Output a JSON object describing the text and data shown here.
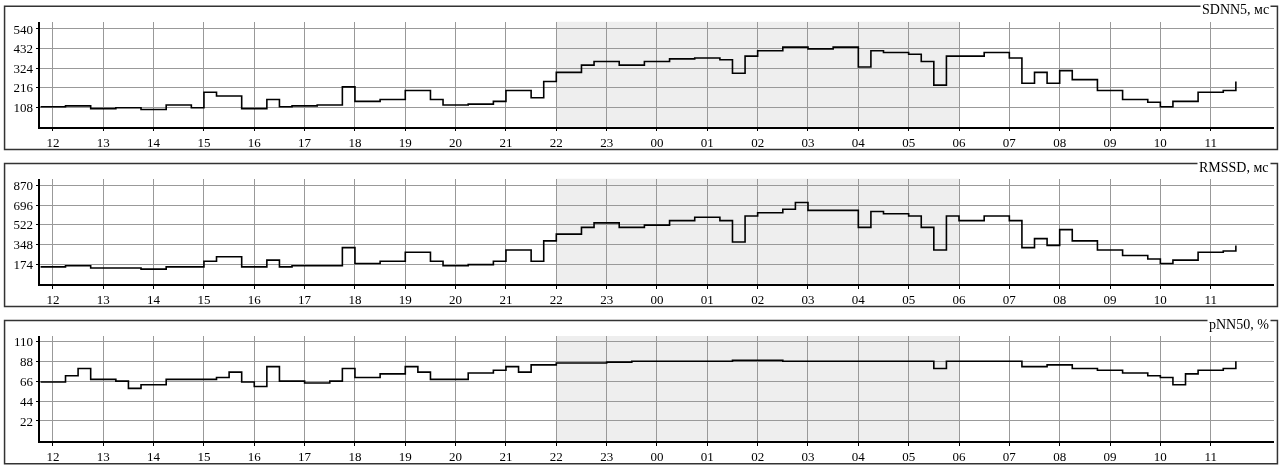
{
  "chart_data": [
    {
      "type": "step",
      "title": "SDNN5, мс",
      "categories": [
        null,
        "12",
        null,
        null,
        null,
        "13",
        null,
        null,
        null,
        "14",
        null,
        null,
        null,
        "15",
        null,
        null,
        null,
        "16",
        null,
        null,
        null,
        "17",
        null,
        null,
        null,
        "18",
        null,
        null,
        null,
        "19",
        null,
        null,
        null,
        "20",
        null,
        null,
        null,
        "21",
        null,
        null,
        null,
        "22",
        null,
        null,
        null,
        "23",
        null,
        null,
        null,
        "00",
        null,
        null,
        null,
        "01",
        null,
        null,
        null,
        "02",
        null,
        null,
        null,
        "03",
        null,
        null,
        null,
        "04",
        null,
        null,
        null,
        "05",
        null,
        null,
        null,
        "06",
        null,
        null,
        null,
        "07",
        null,
        null,
        null,
        "08",
        null,
        null,
        null,
        "09",
        null,
        null,
        null,
        "10",
        null,
        null,
        null,
        "11",
        null,
        null,
        null,
        null,
        null
      ],
      "ylim": [
        0,
        580
      ],
      "yticks": [
        108,
        216,
        324,
        432,
        540
      ],
      "grid": true,
      "bands": [
        {
          "axis": "x",
          "from": "22",
          "to": "06",
          "color": "#eeeeee"
        }
      ],
      "series": [
        {
          "color": "#000000",
          "values": [
            110,
            110,
            115,
            115,
            100,
            100,
            105,
            105,
            95,
            95,
            120,
            120,
            105,
            190,
            170,
            170,
            100,
            100,
            150,
            110,
            115,
            115,
            120,
            120,
            220,
            140,
            140,
            150,
            150,
            200,
            200,
            150,
            120,
            120,
            125,
            125,
            140,
            200,
            200,
            160,
            250,
            300,
            300,
            340,
            360,
            360,
            340,
            340,
            360,
            360,
            375,
            375,
            380,
            380,
            370,
            295,
            390,
            420,
            420,
            440,
            440,
            430,
            430,
            440,
            440,
            330,
            420,
            410,
            410,
            400,
            360,
            230,
            390,
            390,
            390,
            410,
            410,
            380,
            240,
            300,
            240,
            310,
            260,
            260,
            200,
            200,
            150,
            150,
            135,
            110,
            140,
            140,
            190,
            190,
            200,
            250,
            null,
            null,
            null
          ]
        }
      ]
    },
    {
      "type": "step",
      "title": "RMSSD, мс",
      "categories": [
        null,
        "12",
        null,
        null,
        null,
        "13",
        null,
        null,
        null,
        "14",
        null,
        null,
        null,
        "15",
        null,
        null,
        null,
        "16",
        null,
        null,
        null,
        "17",
        null,
        null,
        null,
        "18",
        null,
        null,
        null,
        "19",
        null,
        null,
        null,
        "20",
        null,
        null,
        null,
        "21",
        null,
        null,
        null,
        "22",
        null,
        null,
        null,
        "23",
        null,
        null,
        null,
        "00",
        null,
        null,
        null,
        "01",
        null,
        null,
        null,
        "02",
        null,
        null,
        null,
        "03",
        null,
        null,
        null,
        "04",
        null,
        null,
        null,
        "05",
        null,
        null,
        null,
        "06",
        null,
        null,
        null,
        "07",
        null,
        null,
        null,
        "08",
        null,
        null,
        null,
        "09",
        null,
        null,
        null,
        "10",
        null,
        null,
        null,
        "11",
        null,
        null,
        null,
        null,
        null
      ],
      "ylim": [
        0,
        930
      ],
      "yticks": [
        174,
        348,
        522,
        696,
        870
      ],
      "grid": true,
      "bands": [
        {
          "axis": "x",
          "from": "22",
          "to": "06",
          "color": "#eeeeee"
        }
      ],
      "series": [
        {
          "color": "#000000",
          "values": [
            150,
            150,
            160,
            160,
            140,
            140,
            140,
            140,
            130,
            130,
            150,
            150,
            150,
            200,
            240,
            240,
            150,
            150,
            210,
            150,
            160,
            160,
            160,
            160,
            320,
            180,
            180,
            200,
            200,
            280,
            280,
            200,
            160,
            160,
            170,
            170,
            200,
            300,
            300,
            200,
            380,
            440,
            440,
            500,
            540,
            540,
            500,
            500,
            520,
            520,
            560,
            560,
            590,
            590,
            560,
            370,
            600,
            630,
            630,
            660,
            720,
            650,
            650,
            650,
            650,
            500,
            640,
            620,
            620,
            600,
            500,
            300,
            600,
            560,
            560,
            600,
            600,
            560,
            320,
            400,
            340,
            480,
            380,
            380,
            300,
            300,
            250,
            250,
            220,
            180,
            210,
            210,
            280,
            280,
            290,
            340,
            null,
            null,
            null
          ]
        }
      ]
    },
    {
      "type": "step",
      "title": "pNN50, %",
      "categories": [
        null,
        "12",
        null,
        null,
        null,
        "13",
        null,
        null,
        null,
        "14",
        null,
        null,
        null,
        "15",
        null,
        null,
        null,
        "16",
        null,
        null,
        null,
        "17",
        null,
        null,
        null,
        "18",
        null,
        null,
        null,
        "19",
        null,
        null,
        null,
        "20",
        null,
        null,
        null,
        "21",
        null,
        null,
        null,
        "22",
        null,
        null,
        null,
        "23",
        null,
        null,
        null,
        "00",
        null,
        null,
        null,
        "01",
        null,
        null,
        null,
        "02",
        null,
        null,
        null,
        "03",
        null,
        null,
        null,
        "04",
        null,
        null,
        null,
        "05",
        null,
        null,
        null,
        "06",
        null,
        null,
        null,
        "07",
        null,
        null,
        null,
        "08",
        null,
        null,
        null,
        "09",
        null,
        null,
        null,
        "10",
        null,
        null,
        null,
        "11",
        null,
        null,
        null,
        null,
        null
      ],
      "ylim": [
        0,
        116
      ],
      "yticks": [
        22,
        44,
        66,
        88,
        110
      ],
      "grid": true,
      "bands": [
        {
          "axis": "x",
          "from": "22",
          "to": "06",
          "color": "#eeeeee"
        }
      ],
      "series": [
        {
          "color": "#000000",
          "values": [
            65,
            65,
            72,
            80,
            68,
            68,
            66,
            58,
            62,
            62,
            68,
            68,
            68,
            68,
            70,
            76,
            65,
            60,
            82,
            66,
            66,
            64,
            64,
            66,
            80,
            70,
            70,
            74,
            74,
            82,
            76,
            68,
            68,
            68,
            75,
            75,
            78,
            82,
            76,
            84,
            84,
            86,
            86,
            86,
            86,
            87,
            87,
            88,
            88,
            88,
            88,
            88,
            88,
            88,
            88,
            89,
            89,
            89,
            89,
            88,
            88,
            88,
            88,
            88,
            88,
            88,
            88,
            88,
            88,
            88,
            88,
            80,
            88,
            88,
            88,
            88,
            88,
            88,
            82,
            82,
            84,
            84,
            80,
            80,
            78,
            78,
            75,
            75,
            72,
            70,
            62,
            74,
            78,
            78,
            80,
            88,
            null,
            null,
            null
          ]
        }
      ]
    }
  ]
}
